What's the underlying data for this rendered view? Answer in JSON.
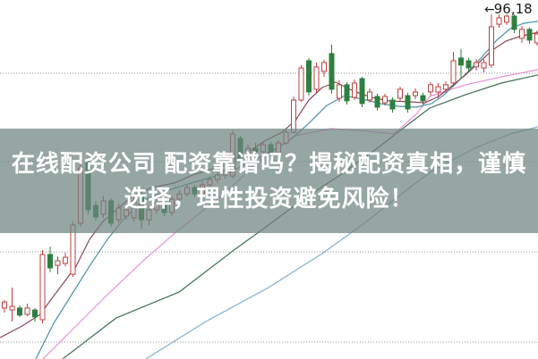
{
  "overlay": {
    "line1": "在线配资公司 配资靠谱吗？揭秘配资真相，谨慎",
    "line2": "选择，理性投资避免风险！",
    "text_color": "#ffffff",
    "band_rgba": "rgba(110,131,127,0.72)"
  },
  "marker": {
    "arrow": "←",
    "label": "96,18",
    "color": "#1a1a1a"
  },
  "chart_data": {
    "type": "candlestick",
    "title": "",
    "xlabel": "",
    "ylabel": "",
    "x_tick_labels": [],
    "y_tick_labels": [],
    "grid": "dotted-horizontal",
    "ylim": [
      76.5,
      97.0
    ],
    "gridline_prices": [
      92.82,
      87.77,
      82.62,
      77.47
    ],
    "gridline_color": "#909090",
    "background": "#ffffff",
    "up_color": "#bf4040",
    "down_color": "#2e8040",
    "candle_width": 5,
    "x_start": -3.5,
    "x_spacing": 8.5,
    "last_high_marked": 96.18,
    "candles": [
      [
        79.2,
        79.9,
        78.9,
        79.7
      ],
      [
        79.41,
        79.86,
        79.15,
        79.76
      ],
      [
        79.3,
        80.58,
        78.64,
        79.51
      ],
      [
        79.41,
        79.56,
        78.9,
        79.0
      ],
      [
        79.05,
        79.66,
        78.95,
        79.41
      ],
      [
        79.3,
        79.41,
        78.64,
        78.9
      ],
      [
        78.74,
        82.72,
        78.54,
        82.47
      ],
      [
        82.47,
        82.92,
        81.45,
        81.7
      ],
      [
        81.85,
        82.36,
        81.34,
        82.11
      ],
      [
        81.96,
        82.57,
        81.8,
        82.31
      ],
      [
        81.34,
        84.35,
        81.19,
        84.15
      ],
      [
        84.25,
        87.92,
        84.05,
        87.41
      ],
      [
        87.72,
        87.92,
        84.76,
        85.02
      ],
      [
        85.27,
        85.53,
        84.4,
        84.61
      ],
      [
        84.76,
        85.78,
        84.56,
        85.53
      ],
      [
        85.53,
        85.68,
        84.05,
        84.25
      ],
      [
        84.45,
        85.37,
        84.25,
        85.12
      ],
      [
        84.66,
        85.27,
        84.45,
        85.02
      ],
      [
        84.56,
        85.78,
        84.35,
        85.53
      ],
      [
        85.93,
        86.09,
        83.94,
        84.45
      ],
      [
        84.45,
        85.27,
        84.15,
        85.02
      ],
      [
        85.02,
        85.63,
        84.76,
        85.42
      ],
      [
        85.42,
        85.58,
        84.66,
        84.86
      ],
      [
        84.86,
        85.83,
        84.66,
        85.63
      ],
      [
        85.63,
        86.14,
        85.42,
        85.93
      ],
      [
        85.93,
        86.49,
        85.78,
        86.29
      ],
      [
        86.29,
        86.44,
        85.73,
        85.93
      ],
      [
        85.93,
        86.65,
        85.78,
        86.44
      ],
      [
        86.44,
        86.95,
        86.29,
        86.75
      ],
      [
        86.75,
        87.16,
        86.55,
        87.0
      ],
      [
        87.0,
        87.41,
        86.8,
        87.26
      ],
      [
        86.95,
        89.55,
        86.8,
        89.35
      ],
      [
        89.1,
        89.25,
        87.72,
        87.92
      ],
      [
        87.92,
        88.74,
        87.77,
        88.53
      ],
      [
        88.53,
        88.84,
        88.13,
        88.33
      ],
      [
        88.33,
        88.94,
        88.18,
        88.74
      ],
      [
        88.74,
        88.89,
        88.08,
        88.28
      ],
      [
        88.28,
        89.0,
        88.13,
        88.84
      ],
      [
        88.84,
        89.6,
        88.74,
        89.45
      ],
      [
        89.45,
        91.49,
        89.35,
        91.29
      ],
      [
        91.29,
        93.28,
        91.19,
        93.12
      ],
      [
        93.53,
        93.69,
        91.54,
        91.75
      ],
      [
        91.9,
        93.43,
        91.7,
        93.18
      ],
      [
        92.92,
        93.58,
        92.61,
        93.43
      ],
      [
        93.94,
        94.45,
        91.64,
        91.9
      ],
      [
        91.39,
        92.41,
        91.18,
        92.16
      ],
      [
        92.16,
        92.31,
        91.03,
        91.24
      ],
      [
        91.44,
        92.46,
        91.29,
        92.26
      ],
      [
        92.51,
        92.61,
        90.88,
        91.08
      ],
      [
        91.29,
        91.95,
        91.13,
        91.75
      ],
      [
        91.49,
        91.65,
        90.68,
        90.88
      ],
      [
        91.13,
        91.65,
        90.98,
        91.49
      ],
      [
        91.29,
        91.44,
        90.57,
        90.78
      ],
      [
        91.39,
        92.05,
        91.24,
        91.9
      ],
      [
        91.54,
        91.7,
        90.57,
        90.78
      ],
      [
        91.54,
        91.95,
        91.34,
        91.75
      ],
      [
        91.54,
        91.7,
        91.03,
        91.24
      ],
      [
        91.75,
        92.31,
        91.54,
        92.16
      ],
      [
        91.75,
        92.26,
        91.39,
        92.05
      ],
      [
        91.9,
        92.36,
        91.7,
        92.16
      ],
      [
        92.26,
        94.04,
        92.05,
        93.53
      ],
      [
        93.69,
        94.2,
        92.51,
        93.28
      ],
      [
        93.53,
        93.69,
        92.92,
        93.12
      ],
      [
        93.18,
        93.63,
        92.97,
        93.43
      ],
      [
        93.12,
        93.63,
        92.87,
        93.43
      ],
      [
        93.28,
        96.18,
        93.12,
        95.47
      ],
      [
        95.62,
        96.18,
        95.42,
        95.98
      ],
      [
        95.73,
        96.18,
        95.57,
        96.08
      ],
      [
        96.08,
        96.18,
        95.11,
        95.32
      ],
      [
        94.81,
        95.52,
        94.55,
        95.32
      ],
      [
        95.32,
        95.42,
        94.51,
        94.71
      ],
      [
        94.55,
        95.26,
        94.4,
        95.06
      ]
    ],
    "ma_lines": [
      {
        "name": "ma-fast",
        "color": "#8a4a58",
        "points": [
          [
            0,
            77.72
          ],
          [
            25,
            78.39
          ],
          [
            45,
            79.05
          ],
          [
            55,
            79.76
          ],
          [
            70,
            80.78
          ],
          [
            85,
            81.8
          ],
          [
            100,
            83.33
          ],
          [
            115,
            84.35
          ],
          [
            130,
            85.02
          ],
          [
            150,
            85.88
          ],
          [
            170,
            86.29
          ],
          [
            195,
            86.55
          ],
          [
            215,
            87.0
          ],
          [
            235,
            87.31
          ],
          [
            255,
            87.72
          ],
          [
            275,
            88.23
          ],
          [
            295,
            88.94
          ],
          [
            315,
            89.45
          ],
          [
            330,
            90.12
          ],
          [
            345,
            91.29
          ],
          [
            360,
            92.0
          ],
          [
            375,
            92.31
          ],
          [
            395,
            91.8
          ],
          [
            415,
            91.44
          ],
          [
            435,
            91.24
          ],
          [
            455,
            91.19
          ],
          [
            475,
            91.13
          ],
          [
            490,
            91.49
          ],
          [
            505,
            92.1
          ],
          [
            520,
            92.72
          ],
          [
            535,
            93.43
          ],
          [
            550,
            94.14
          ],
          [
            565,
            94.65
          ],
          [
            580,
            94.91
          ],
          [
            601,
            95.16
          ]
        ]
      },
      {
        "name": "ma-mid",
        "color": "#4a93a8",
        "points": [
          [
            40,
            76.5
          ],
          [
            60,
            78.54
          ],
          [
            80,
            80.17
          ],
          [
            100,
            81.8
          ],
          [
            120,
            83.33
          ],
          [
            140,
            84.61
          ],
          [
            160,
            85.53
          ],
          [
            185,
            86.09
          ],
          [
            210,
            86.49
          ],
          [
            235,
            86.85
          ],
          [
            260,
            87.26
          ],
          [
            285,
            87.87
          ],
          [
            305,
            88.43
          ],
          [
            325,
            89.04
          ],
          [
            345,
            89.96
          ],
          [
            365,
            90.98
          ],
          [
            385,
            91.54
          ],
          [
            405,
            91.34
          ],
          [
            425,
            91.08
          ],
          [
            445,
            90.93
          ],
          [
            465,
            90.88
          ],
          [
            482,
            91.08
          ],
          [
            495,
            91.54
          ],
          [
            510,
            92.26
          ],
          [
            525,
            93.02
          ],
          [
            540,
            93.84
          ],
          [
            555,
            94.71
          ],
          [
            570,
            95.37
          ],
          [
            585,
            95.67
          ],
          [
            601,
            95.78
          ]
        ]
      },
      {
        "name": "ma-20",
        "color": "#e890d8",
        "points": [
          [
            48,
            76.5
          ],
          [
            80,
            78.13
          ],
          [
            120,
            80.17
          ],
          [
            160,
            82.11
          ],
          [
            200,
            83.89
          ],
          [
            250,
            85.93
          ],
          [
            290,
            87.82
          ],
          [
            330,
            89.25
          ],
          [
            370,
            89.66
          ],
          [
            410,
            89.51
          ],
          [
            440,
            89.35
          ],
          [
            465,
            90.47
          ],
          [
            480,
            91.49
          ],
          [
            520,
            92.16
          ],
          [
            560,
            92.61
          ],
          [
            601,
            93.02
          ]
        ]
      },
      {
        "name": "ma-30",
        "color": "#3f7050",
        "points": [
          [
            70,
            76.5
          ],
          [
            130,
            78.85
          ],
          [
            200,
            80.32
          ],
          [
            260,
            82.67
          ],
          [
            300,
            84.15
          ],
          [
            340,
            85.68
          ],
          [
            380,
            87.0
          ],
          [
            420,
            88.48
          ],
          [
            450,
            89.66
          ],
          [
            480,
            90.83
          ],
          [
            520,
            91.59
          ],
          [
            560,
            92.26
          ],
          [
            601,
            92.72
          ]
        ]
      },
      {
        "name": "ma-slow",
        "color": "#7fb2cc",
        "points": [
          [
            163,
            76.5
          ],
          [
            230,
            78.64
          ],
          [
            300,
            80.58
          ],
          [
            360,
            82.52
          ],
          [
            407,
            84.25
          ],
          [
            450,
            85.98
          ],
          [
            480,
            87.16
          ],
          [
            530,
            88.53
          ],
          [
            570,
            89.35
          ],
          [
            601,
            89.76
          ]
        ]
      }
    ]
  }
}
